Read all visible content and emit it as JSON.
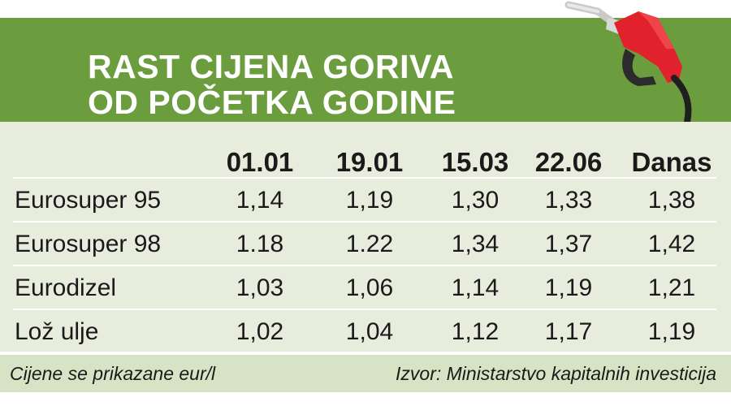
{
  "header": {
    "title_line1": "RAST CIJENA GORIVA",
    "title_line2": "OD POČETKA GODINE",
    "icon": "fuel-pump-nozzle-icon",
    "background_color": "#6b9d3e"
  },
  "chart_data": {
    "type": "table",
    "columns": [
      "01.01",
      "19.01",
      "15.03",
      "22.06",
      "Danas"
    ],
    "rows": [
      {
        "label": "Eurosuper 95",
        "values": [
          "1,14",
          "1,19",
          "1,30",
          "1,33",
          "1,38"
        ]
      },
      {
        "label": "Eurosuper 98",
        "values": [
          "1.18",
          "1.22",
          "1,34",
          "1,37",
          "1,42"
        ]
      },
      {
        "label": "Eurodizel",
        "values": [
          "1,03",
          "1,06",
          "1,14",
          "1,19",
          "1,21"
        ]
      },
      {
        "label": "Lož ulje",
        "values": [
          "1,02",
          "1,04",
          "1,12",
          "1,17",
          "1,19"
        ]
      }
    ]
  },
  "footer": {
    "note": "Cijene se prikazane eur/l",
    "source": "Izvor: Ministarstvo kapitalnih investicija"
  }
}
